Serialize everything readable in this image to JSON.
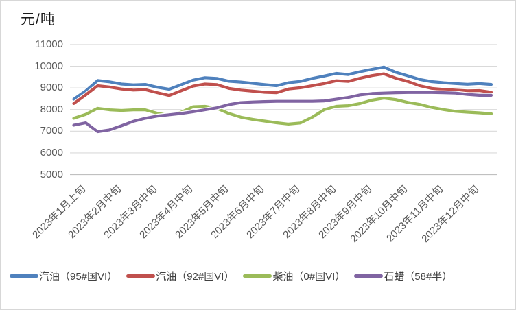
{
  "title": "元/吨",
  "chart_data": {
    "type": "line",
    "title": "元/吨",
    "xlabel": "",
    "ylabel": "元/吨",
    "ylim": [
      5000,
      11000
    ],
    "y_ticks": [
      11000,
      10000,
      9000,
      8000,
      7000,
      6000,
      5000
    ],
    "grid": "horizontal",
    "legend_position": "bottom",
    "points_per_tick_interval": 3,
    "x_tick_labels": [
      "2023年1月上旬",
      "2023年2月中旬",
      "2023年3月中旬",
      "2023年4月中旬",
      "2023年5月中旬",
      "2023年6月中旬",
      "2023年7月中旬",
      "2023年8月中旬",
      "2023年9月中旬",
      "2023年10月中旬",
      "2023年11月中旬",
      "2023年12月中旬"
    ],
    "series": [
      {
        "name": "汽油（95#国VI）",
        "color": "#4F81BD",
        "values": [
          8480,
          8860,
          9340,
          9280,
          9180,
          9140,
          9160,
          9030,
          8940,
          9150,
          9360,
          9470,
          9440,
          9310,
          9270,
          9210,
          9150,
          9100,
          9240,
          9300,
          9440,
          9550,
          9670,
          9620,
          9750,
          9860,
          9960,
          9720,
          9560,
          9390,
          9290,
          9240,
          9200,
          9170,
          9200,
          9160
        ]
      },
      {
        "name": "汽油（92#国VI）",
        "color": "#C0504D",
        "values": [
          8280,
          8680,
          9100,
          9040,
          8950,
          8900,
          8920,
          8780,
          8650,
          8870,
          9080,
          9180,
          9150,
          8980,
          8900,
          8850,
          8800,
          8780,
          8950,
          9010,
          9100,
          9200,
          9330,
          9300,
          9450,
          9570,
          9650,
          9450,
          9300,
          9100,
          8980,
          8930,
          8900,
          8870,
          8880,
          8800
        ]
      },
      {
        "name": "柴油（0#国VI）",
        "color": "#9BBB59",
        "values": [
          7600,
          7780,
          8060,
          7990,
          7960,
          7990,
          7990,
          7830,
          7730,
          7880,
          8130,
          8150,
          8060,
          7820,
          7650,
          7550,
          7470,
          7390,
          7330,
          7380,
          7650,
          8000,
          8150,
          8180,
          8280,
          8440,
          8530,
          8460,
          8330,
          8240,
          8100,
          8000,
          7920,
          7880,
          7850,
          7810
        ]
      },
      {
        "name": "石蜡（58#半）",
        "color": "#8064A2",
        "values": [
          7280,
          7390,
          6980,
          7060,
          7250,
          7460,
          7600,
          7700,
          7760,
          7820,
          7900,
          7990,
          8080,
          8230,
          8320,
          8350,
          8370,
          8380,
          8380,
          8380,
          8380,
          8400,
          8480,
          8560,
          8680,
          8740,
          8760,
          8780,
          8790,
          8790,
          8790,
          8780,
          8760,
          8700,
          8660,
          8660
        ]
      }
    ],
    "colors": {
      "grid": "#D9D9D9",
      "axis": "#C0C0C0",
      "tick_label": "#595959",
      "title": "#1A1A1A",
      "legend_label": "#404040",
      "halo": "#FFFFFF"
    }
  }
}
